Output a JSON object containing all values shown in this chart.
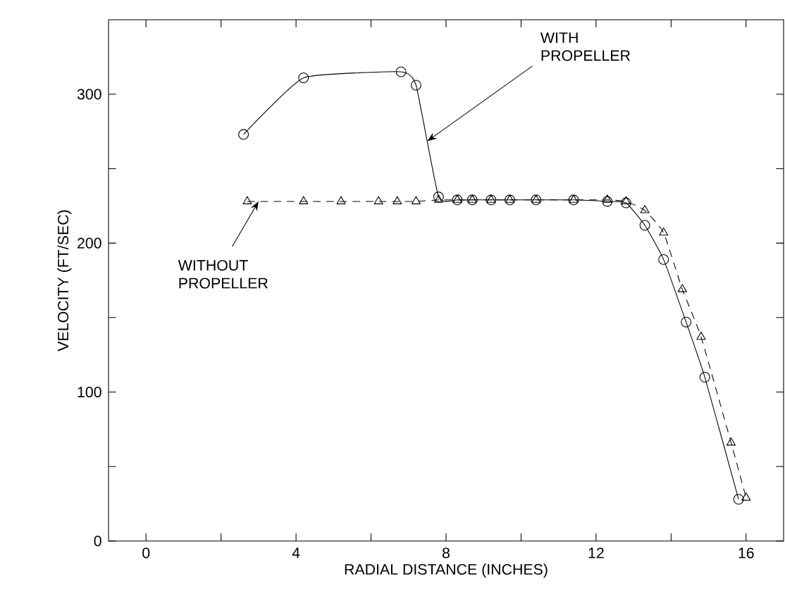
{
  "chart_data": {
    "type": "line",
    "xlabel": "RADIAL DISTANCE (INCHES)",
    "ylabel": "VELOCITY (FT/SEC)",
    "xlim": [
      -1,
      17
    ],
    "ylim": [
      0,
      350
    ],
    "xticks": [
      0,
      {
        "value": 2,
        "label": null
      },
      4,
      {
        "value": 6,
        "label": null
      },
      8,
      {
        "value": 10,
        "label": null
      },
      12,
      {
        "value": 14,
        "label": null
      },
      16
    ],
    "yticks": [
      0,
      {
        "value": 50,
        "label": null
      },
      100,
      {
        "value": 150,
        "label": null
      },
      200,
      {
        "value": 250,
        "label": null
      },
      300
    ],
    "grid": false,
    "series": [
      {
        "color": "#000000",
        "marker": "circle",
        "line_style": "solid",
        "x": [
          2.6,
          4.2,
          6.8,
          7.2,
          7.8,
          8.3,
          8.7,
          9.2,
          9.7,
          10.4,
          11.4,
          12.3,
          12.8,
          13.3,
          13.8,
          14.4,
          14.9,
          15.8
        ],
        "values": [
          273,
          311,
          315,
          306,
          231,
          229,
          229,
          229,
          229,
          229,
          229,
          228,
          227,
          212,
          189,
          147,
          110,
          28
        ]
      },
      {
        "color": "#000000",
        "marker": "triangle",
        "line_style": "dashed",
        "x": [
          2.7,
          4.2,
          5.2,
          6.2,
          6.7,
          7.2,
          7.8,
          8.3,
          8.7,
          9.2,
          9.7,
          10.4,
          11.4,
          12.3,
          12.8,
          13.3,
          13.8,
          14.3,
          14.8,
          15.6,
          16.0
        ],
        "values": [
          228,
          228,
          228,
          228,
          228,
          228,
          229,
          229,
          229,
          229,
          229,
          229,
          229,
          229,
          228,
          222,
          207,
          169,
          137,
          66,
          29
        ]
      }
    ],
    "annotations": [
      {
        "text": "WITH PROPELLER",
        "x": 7.5,
        "y": 268.5
      },
      {
        "text": "WITHOUT PROPELLER",
        "x": 3.0,
        "y": 228
      }
    ]
  }
}
